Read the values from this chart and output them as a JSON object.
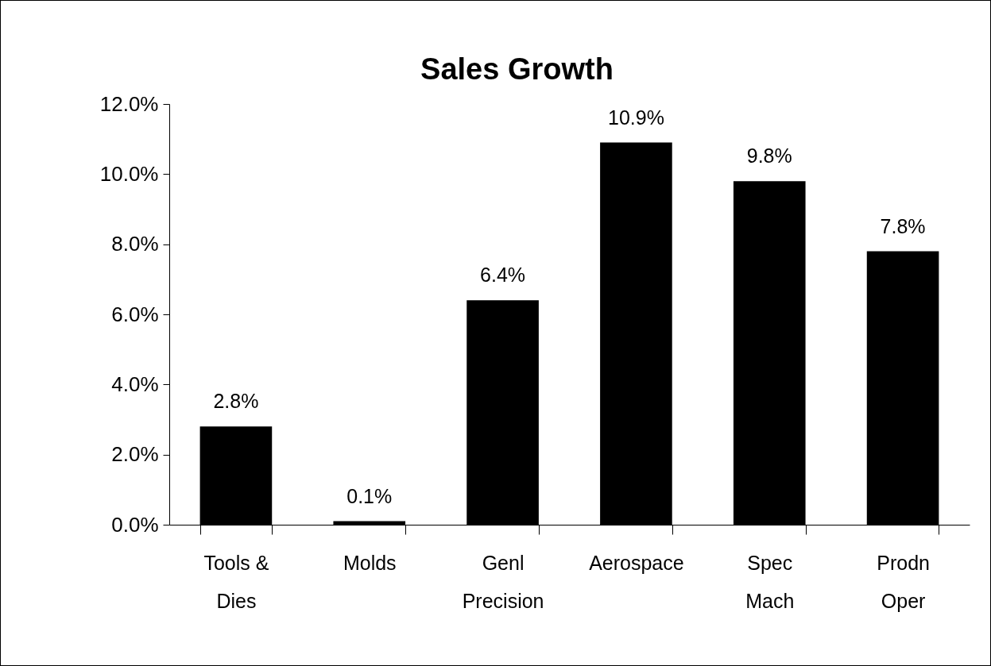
{
  "chart_data": {
    "type": "bar",
    "title": "Sales Growth",
    "categories": [
      "Tools & Dies",
      "Molds",
      "Genl Precision",
      "Aerospace",
      "Spec Mach",
      "Prodn Oper"
    ],
    "values": [
      2.8,
      0.1,
      6.4,
      10.9,
      9.8,
      7.8
    ],
    "value_labels": [
      "2.8%",
      "0.1%",
      "6.4%",
      "10.9%",
      "9.8%",
      "7.8%"
    ],
    "color": "#000000",
    "ylim": [
      0,
      12
    ],
    "yticks": [
      {
        "value": 0,
        "label": "0.0%"
      },
      {
        "value": 2,
        "label": "2.0%"
      },
      {
        "value": 4,
        "label": "4.0%"
      },
      {
        "value": 6,
        "label": "6.0%"
      },
      {
        "value": 8,
        "label": "8.0%"
      },
      {
        "value": 10,
        "label": "10.0%"
      },
      {
        "value": 12,
        "label": "12.0%"
      }
    ],
    "grid": false
  }
}
